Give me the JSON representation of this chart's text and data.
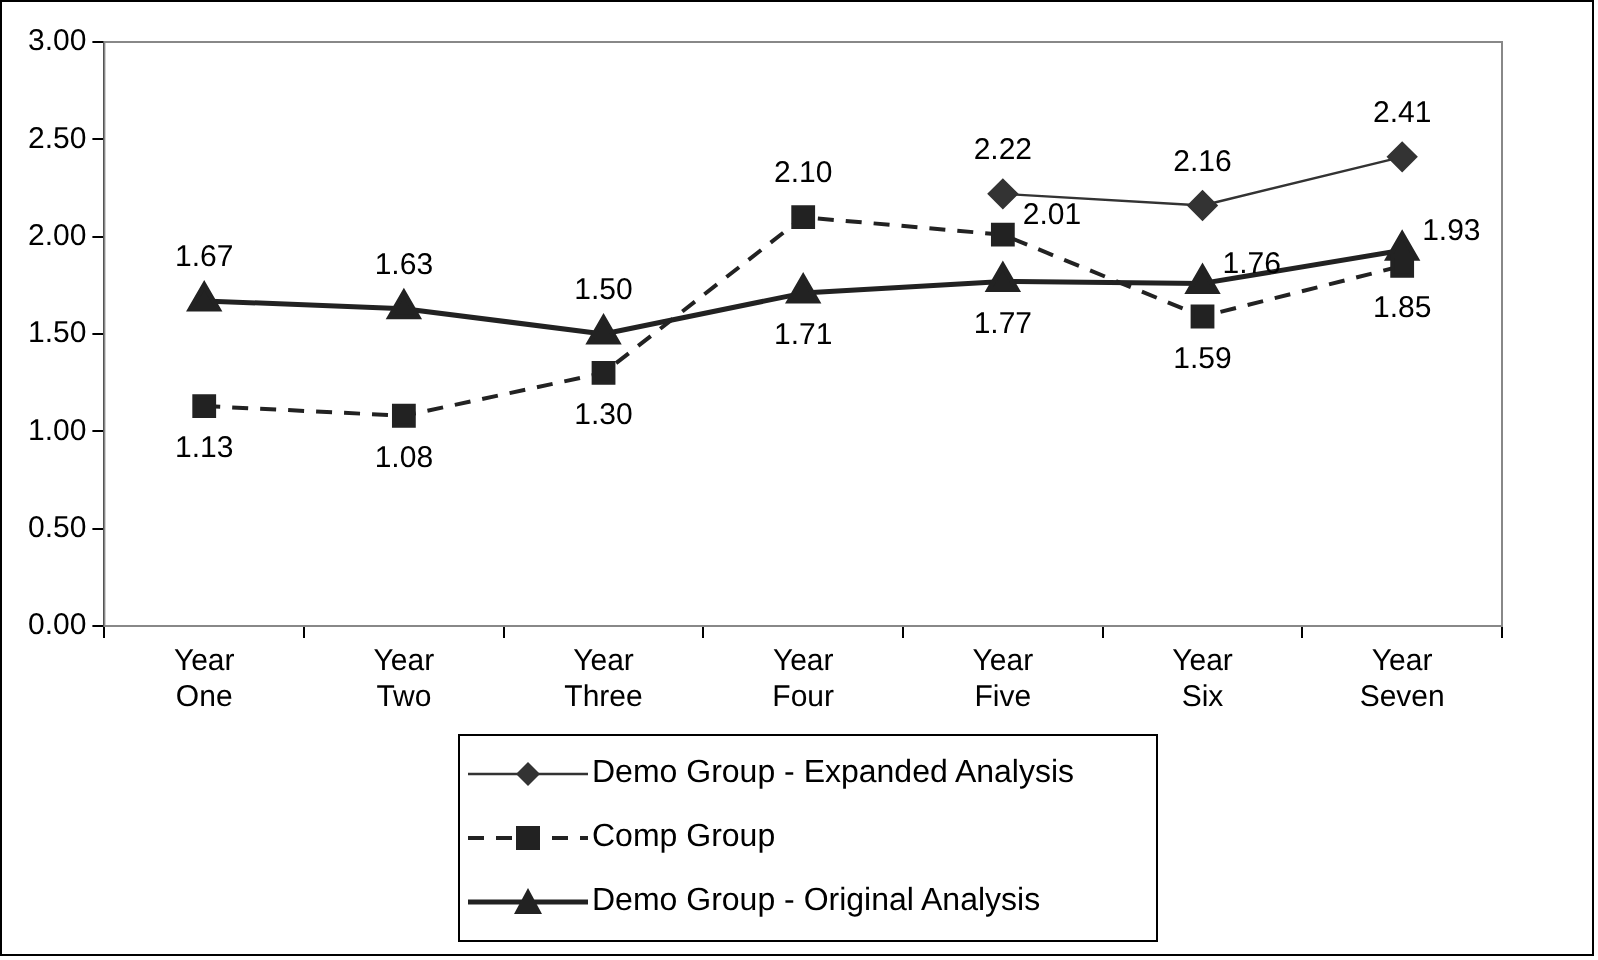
{
  "chart_data": {
    "type": "line",
    "categories": [
      "Year One",
      "Year Two",
      "Year Three",
      "Year Four",
      "Year Five",
      "Year Six",
      "Year Seven"
    ],
    "series": [
      {
        "name": "Demo Group - Expanded Analysis",
        "color": "#333333",
        "marker": "diamond",
        "line_style": "solid",
        "values": [
          null,
          null,
          null,
          null,
          2.22,
          2.16,
          2.41
        ],
        "value_labels": [
          null,
          null,
          null,
          null,
          "2.22",
          "2.16",
          "2.41"
        ]
      },
      {
        "name": "Comp Group",
        "color": "#222222",
        "marker": "square",
        "line_style": "dashed",
        "values": [
          1.13,
          1.08,
          1.3,
          2.1,
          2.01,
          1.59,
          1.85
        ],
        "value_labels": [
          "1.13",
          "1.08",
          "1.30",
          "2.10",
          "2.01",
          "1.59",
          "1.85"
        ]
      },
      {
        "name": "Demo Group - Original Analysis",
        "color": "#222222",
        "marker": "triangle",
        "line_style": "solid",
        "values": [
          1.67,
          1.63,
          1.5,
          1.71,
          1.77,
          1.76,
          1.93
        ],
        "value_labels": [
          "1.67",
          "1.63",
          "1.50",
          "1.71",
          "1.77",
          "1.76",
          "1.93"
        ]
      }
    ],
    "ylim": [
      0,
      3
    ],
    "yticks": [
      {
        "value": 0,
        "label": "0.00"
      },
      {
        "value": 0.5,
        "label": "0.50"
      },
      {
        "value": 1,
        "label": "1.00"
      },
      {
        "value": 1.5,
        "label": "1.50"
      },
      {
        "value": 2,
        "label": "2.00"
      },
      {
        "value": 2.5,
        "label": "2.50"
      },
      {
        "value": 3,
        "label": "3.00"
      }
    ],
    "grid": false,
    "legend": "bottom"
  }
}
